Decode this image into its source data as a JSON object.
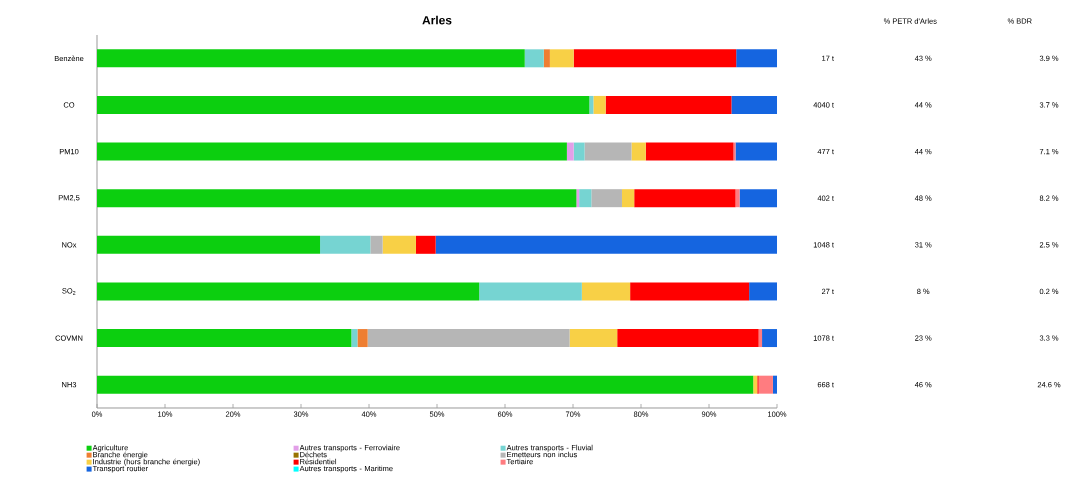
{
  "chart_data": {
    "type": "bar",
    "orientation": "horizontal",
    "stacked": true,
    "title": "Arles",
    "categories": [
      "Benzène",
      "CO",
      "PM10",
      "PM2,5",
      "NOx",
      "SO$_{2}$",
      "COVMN",
      "NH3"
    ],
    "series": [
      {
        "name": "Agriculture",
        "color": "#0ccf0f",
        "values": [
          62.9,
          72.4,
          69.1,
          70.5,
          32.8,
          56.2,
          37.4,
          96.5
        ]
      },
      {
        "name": "Autres transports - Ferroviaire",
        "color": "#e29fe8",
        "values": [
          0,
          0,
          1.0,
          0.4,
          0,
          0,
          0,
          0
        ]
      },
      {
        "name": "Autres transports - Fluvial",
        "color": "#76d4d2",
        "values": [
          2.8,
          0.6,
          1.6,
          1.8,
          7.4,
          15.1,
          0.9,
          0
        ]
      },
      {
        "name": "Branche énergie",
        "color": "#ee7e32",
        "values": [
          0.9,
          0,
          0,
          0,
          0,
          0,
          1.5,
          0
        ]
      },
      {
        "name": "Déchets",
        "color": "#997300",
        "values": [
          0,
          0,
          0,
          0,
          0,
          0,
          0,
          0
        ]
      },
      {
        "name": "Emetteurs non inclus",
        "color": "#b6b6b6",
        "values": [
          0,
          0,
          6.9,
          4.5,
          1.8,
          0,
          29.7,
          0
        ]
      },
      {
        "name": "Industrie (hors branche énergie)",
        "color": "#f8d046",
        "values": [
          3.5,
          1.8,
          2.1,
          1.8,
          4.9,
          7.1,
          7.0,
          0.6
        ]
      },
      {
        "name": "Résidentiel",
        "color": "#ff0000",
        "values": [
          23.9,
          18.5,
          12.9,
          14.9,
          2.9,
          17.5,
          20.8,
          0.2
        ]
      },
      {
        "name": "Tertiaire",
        "color": "#ff7c80",
        "values": [
          0,
          0,
          0.3,
          0.6,
          0,
          0,
          0.5,
          2.1
        ]
      },
      {
        "name": "Transport routier",
        "color": "#1565e0",
        "values": [
          6.0,
          6.7,
          6.1,
          5.5,
          50.2,
          4.1,
          2.2,
          0.6
        ]
      },
      {
        "name": "Autres transports - Maritime",
        "color": "#00ffff",
        "values": [
          0,
          0,
          0,
          0,
          0,
          0,
          0,
          0
        ]
      }
    ],
    "xlim": [
      0,
      100
    ],
    "xticks": [
      {
        "value": 0,
        "label": "0%"
      },
      {
        "value": 10,
        "label": "10%"
      },
      {
        "value": 20,
        "label": "20%"
      },
      {
        "value": 30,
        "label": "30%"
      },
      {
        "value": 40,
        "label": "40%"
      },
      {
        "value": 50,
        "label": "50%"
      },
      {
        "value": 60,
        "label": "60%"
      },
      {
        "value": 70,
        "label": "70%"
      },
      {
        "value": 80,
        "label": "80%"
      },
      {
        "value": 90,
        "label": "90%"
      },
      {
        "value": 100,
        "label": "100%"
      }
    ],
    "grid": false,
    "legend": "bottom",
    "annotations": [
      "% PETR d'Arles",
      "% BDR",
      "17 t",
      "43 %",
      "3.9 %",
      "4040 t",
      "44 %",
      "3.7 %",
      "477 t",
      "44 %",
      "7.1 %",
      "402 t",
      "48 %",
      "8.2 %",
      "1048 t",
      "31 %",
      "2.5 %",
      "27 t",
      "8 %",
      "0.2 %",
      "1078 t",
      "23 %",
      "3.3 %",
      "668 t",
      "46 %",
      "24.6 %"
    ]
  }
}
